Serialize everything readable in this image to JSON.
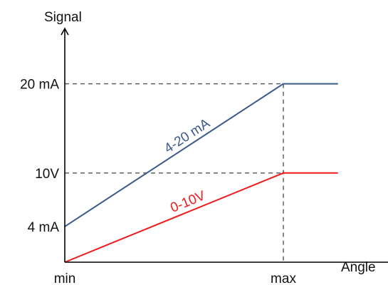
{
  "chart_data": {
    "type": "line",
    "title": "",
    "xlabel": "Angle",
    "ylabel": "Signal",
    "x_ticks": [
      {
        "label": "min",
        "x": 0
      },
      {
        "label": "max",
        "x": 1
      }
    ],
    "y_ticks": [
      {
        "label": "4 mA",
        "y": 4
      },
      {
        "label": "10V",
        "y": 10
      },
      {
        "label": "20 mA",
        "y": 20
      }
    ],
    "xlim": [
      0,
      1.25
    ],
    "ylim": [
      0,
      24
    ],
    "grid": false,
    "reference_lines": [
      {
        "axis": "y",
        "value": 20
      },
      {
        "axis": "y",
        "value": 10
      },
      {
        "axis": "x",
        "value": 1
      }
    ],
    "series": [
      {
        "name": "4-20 mA",
        "color": "#3a5a8c",
        "x": [
          0,
          1,
          1.25
        ],
        "y": [
          4,
          20,
          20
        ]
      },
      {
        "name": "0-10V",
        "color": "#ee1c1c",
        "x": [
          0,
          1,
          1.25
        ],
        "y": [
          0,
          10,
          10
        ]
      }
    ],
    "colors": {
      "axis": "#000000",
      "reference": "#555555"
    }
  }
}
